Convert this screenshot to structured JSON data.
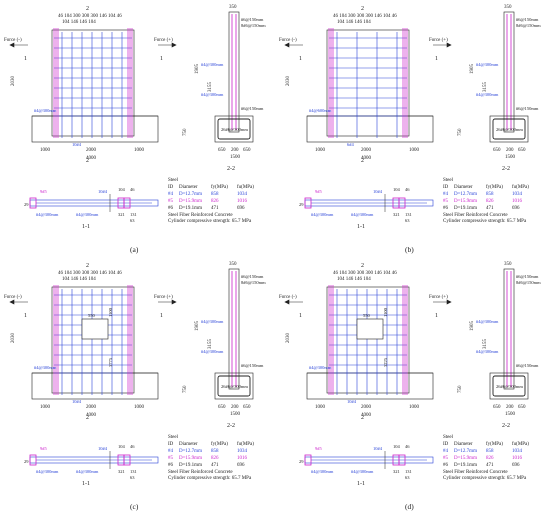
{
  "colors": {
    "rebar": "#cc22cc",
    "bars_blue": "#2a44d8",
    "line": "#222222"
  },
  "common": {
    "force_minus": "Force (-)",
    "force_plus": "Force (+)",
    "top_dims": [
      "46",
      "104",
      "300",
      "300",
      "300",
      "146",
      "104",
      "46"
    ],
    "top_dims_row2": [
      "104",
      "146",
      "146",
      "104"
    ],
    "dim_350": "350",
    "dim_1905": "1905",
    "dim_3155": "3155",
    "dim_2030": "2030",
    "dim_750": "750",
    "bot_1000a": "1000",
    "bot_2000": "2000",
    "bot_1000b": "1000",
    "bot_4000": "4000",
    "sec_650a": "650",
    "sec_200": "200",
    "sec_650b": "650",
    "sec_1500": "1500",
    "label_2_top": "2",
    "label_2_bot": "2",
    "label_1_left": "1",
    "label_1_right": "1",
    "label_11": "1-1",
    "label_22": "2-2",
    "foot_bar": "26#6@300mm",
    "bars_150_1": "#6@150mm",
    "bars_150_2": "8#6@150mm",
    "bars_150_3": "#6@150mm",
    "web_300a": "#4@300mm",
    "web_300b": "#4@300mm",
    "steel_title": "Steel",
    "steel_id": "ID",
    "steel_diam": "Diameter",
    "steel_fy": "fy(MPa)",
    "steel_fu": "fu(MPa)",
    "steel_rows": [
      {
        "id": "#4",
        "d": "D=12.7mm",
        "fy": "858",
        "fu": "1034"
      },
      {
        "id": "#5",
        "d": "D=15.9mm",
        "fy": "826",
        "fu": "1016"
      },
      {
        "id": "#6",
        "d": "D=19.1mm",
        "fy": "471",
        "fu": "696"
      }
    ],
    "sfrc_1": "Steel Fiber Reinforced Concrete",
    "sfrc_2": "Cylinder compressive strength: 65.7 MPa",
    "sec_lbl_9": "9#5",
    "sec_lbl_10": "10#4",
    "sec_lbl_104": "104",
    "sec_lbl_46": "46",
    "sec_lbl_321": "321",
    "sec_lbl_131": "131",
    "sec_lbl_63": "63",
    "sec_lbl_29": "29",
    "sec_lbl_web": "#4@300mm",
    "sec_lbl_web2": "#4@300mm"
  },
  "panels": [
    {
      "caption": "(a)",
      "web_bottom": "#4@300mm",
      "boundary": "10#4",
      "opening": "",
      "opening_dim_a": "",
      "opening_dim_b": ""
    },
    {
      "caption": "(b)",
      "web_bottom": "#4@600mm",
      "boundary": "6#4",
      "opening": "",
      "opening_dim_a": "",
      "opening_dim_b": ""
    },
    {
      "caption": "(c)",
      "web_bottom": "#4@300mm",
      "boundary": "10#4",
      "opening": "550",
      "opening_dim_a": "1100",
      "opening_dim_b": "3775"
    },
    {
      "caption": "(d)",
      "web_bottom": "#4@300mm",
      "boundary": "10#4",
      "opening": "550",
      "opening_dim_a": "1100",
      "opening_dim_b": "3225"
    }
  ]
}
